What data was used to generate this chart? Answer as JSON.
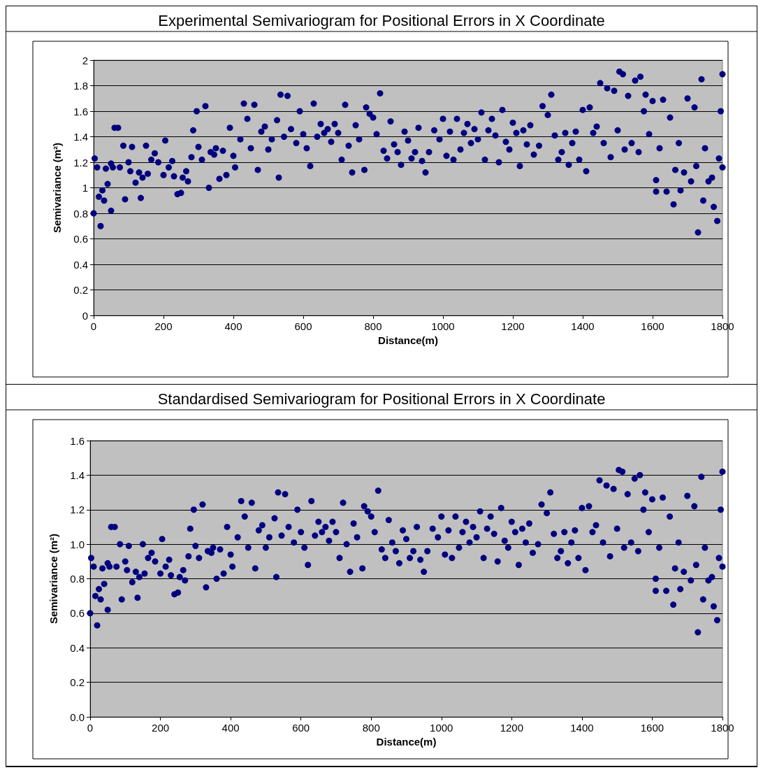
{
  "chart_data": [
    {
      "type": "scatter",
      "title": "Experimental Semivariogram for Positional Errors in X Coordinate",
      "xlabel": "Distance(m)",
      "ylabel": "Semivariance (m²)",
      "xlim": [
        0,
        1800
      ],
      "xticks": [
        0,
        200,
        400,
        600,
        800,
        1000,
        1200,
        1400,
        1600,
        1800
      ],
      "ylim": [
        0,
        2
      ],
      "yticks": [
        0,
        0.2,
        0.4,
        0.6,
        0.8,
        1,
        1.2,
        1.4,
        1.6,
        1.8,
        2
      ],
      "grid": "y",
      "marker": "circle",
      "x": [
        0,
        3,
        10,
        15,
        20,
        25,
        30,
        35,
        40,
        50,
        50,
        55,
        60,
        70,
        75,
        85,
        90,
        100,
        105,
        110,
        120,
        130,
        135,
        140,
        150,
        155,
        165,
        175,
        185,
        200,
        205,
        215,
        225,
        230,
        240,
        250,
        255,
        265,
        270,
        280,
        285,
        295,
        300,
        310,
        320,
        330,
        335,
        345,
        350,
        360,
        370,
        380,
        390,
        400,
        405,
        420,
        430,
        440,
        450,
        460,
        470,
        480,
        490,
        500,
        510,
        525,
        530,
        535,
        545,
        555,
        565,
        580,
        590,
        600,
        610,
        620,
        630,
        640,
        650,
        660,
        670,
        680,
        690,
        700,
        710,
        720,
        730,
        740,
        750,
        760,
        775,
        780,
        790,
        800,
        810,
        820,
        830,
        840,
        850,
        860,
        870,
        880,
        890,
        900,
        910,
        920,
        930,
        940,
        950,
        960,
        975,
        990,
        1000,
        1010,
        1020,
        1030,
        1040,
        1050,
        1060,
        1070,
        1080,
        1090,
        1100,
        1110,
        1120,
        1130,
        1140,
        1150,
        1160,
        1170,
        1180,
        1190,
        1200,
        1210,
        1220,
        1230,
        1240,
        1250,
        1260,
        1275,
        1285,
        1300,
        1310,
        1320,
        1330,
        1340,
        1350,
        1360,
        1370,
        1380,
        1390,
        1400,
        1410,
        1420,
        1430,
        1440,
        1450,
        1460,
        1470,
        1480,
        1490,
        1500,
        1505,
        1515,
        1520,
        1530,
        1540,
        1550,
        1560,
        1565,
        1575,
        1580,
        1590,
        1600,
        1610,
        1610,
        1620,
        1630,
        1640,
        1650,
        1660,
        1665,
        1675,
        1680,
        1690,
        1700,
        1710,
        1720,
        1725,
        1730,
        1740,
        1745,
        1750,
        1760,
        1770,
        1775,
        1785,
        1790,
        1795,
        1800,
        1800
      ],
      "series": [
        {
          "color": "#000080",
          "values": [
            0.8,
            1.23,
            1.16,
            0.93,
            0.7,
            0.98,
            0.9,
            1.15,
            1.03,
            0.82,
            1.19,
            1.16,
            1.47,
            1.47,
            1.16,
            1.33,
            0.91,
            1.2,
            1.13,
            1.32,
            1.04,
            1.12,
            0.92,
            1.08,
            1.33,
            1.11,
            1.22,
            1.27,
            1.2,
            1.1,
            1.37,
            1.16,
            1.21,
            1.09,
            0.95,
            0.96,
            1.08,
            1.13,
            1.05,
            1.24,
            1.45,
            1.6,
            1.32,
            1.22,
            1.64,
            1.0,
            1.28,
            1.26,
            1.31,
            1.07,
            1.29,
            1.1,
            1.47,
            1.25,
            1.16,
            1.38,
            1.66,
            1.54,
            1.31,
            1.65,
            1.14,
            1.44,
            1.48,
            1.3,
            1.38,
            1.53,
            1.08,
            1.73,
            1.4,
            1.72,
            1.46,
            1.35,
            1.6,
            1.42,
            1.31,
            1.17,
            1.66,
            1.4,
            1.5,
            1.43,
            1.46,
            1.36,
            1.5,
            1.43,
            1.22,
            1.65,
            1.33,
            1.12,
            1.49,
            1.38,
            1.14,
            1.63,
            1.58,
            1.55,
            1.42,
            1.74,
            1.29,
            1.23,
            1.52,
            1.34,
            1.28,
            1.18,
            1.44,
            1.37,
            1.23,
            1.28,
            1.47,
            1.21,
            1.12,
            1.28,
            1.45,
            1.38,
            1.54,
            1.25,
            1.44,
            1.22,
            1.54,
            1.3,
            1.43,
            1.5,
            1.35,
            1.46,
            1.38,
            1.59,
            1.22,
            1.45,
            1.54,
            1.41,
            1.2,
            1.61,
            1.36,
            1.3,
            1.51,
            1.43,
            1.17,
            1.45,
            1.34,
            1.49,
            1.26,
            1.33,
            1.64,
            1.57,
            1.73,
            1.41,
            1.22,
            1.28,
            1.43,
            1.18,
            1.35,
            1.44,
            1.22,
            1.61,
            1.13,
            1.63,
            1.43,
            1.48,
            1.82,
            1.35,
            1.78,
            1.24,
            1.76,
            1.45,
            1.91,
            1.89,
            1.3,
            1.72,
            1.35,
            1.84,
            1.28,
            1.87,
            1.6,
            1.73,
            1.42,
            1.68,
            1.06,
            0.97,
            1.31,
            1.69,
            0.97,
            1.55,
            0.87,
            1.14,
            1.35,
            0.98,
            1.12,
            1.7,
            1.05,
            1.63,
            1.17,
            0.65,
            1.85,
            0.9,
            1.31,
            1.05,
            1.08,
            0.85,
            0.74,
            1.23,
            1.6,
            1.89,
            1.16
          ]
        }
      ]
    },
    {
      "type": "scatter",
      "title": "Standardised Semivariogram for Positional Errors in X Coordinate",
      "xlabel": "Distance(m)",
      "ylabel": "Semivariance (m²)",
      "xlim": [
        0,
        1800
      ],
      "xticks": [
        0,
        200,
        400,
        600,
        800,
        1000,
        1200,
        1400,
        1600,
        1800
      ],
      "ylim": [
        0,
        1.6
      ],
      "yticks": [
        {
          "value": 0,
          "label": "0.0"
        },
        0.2,
        0.4,
        0.6,
        0.8,
        {
          "value": 1,
          "label": "1.0"
        },
        1.2,
        1.4,
        1.6
      ],
      "grid": "y",
      "marker": "circle",
      "x": [
        0,
        3,
        10,
        15,
        20,
        25,
        30,
        35,
        40,
        50,
        50,
        55,
        60,
        70,
        75,
        85,
        90,
        100,
        105,
        110,
        120,
        130,
        135,
        140,
        150,
        155,
        165,
        175,
        185,
        200,
        205,
        215,
        225,
        230,
        240,
        250,
        255,
        265,
        270,
        280,
        285,
        295,
        300,
        310,
        320,
        330,
        335,
        345,
        350,
        360,
        370,
        380,
        390,
        400,
        405,
        420,
        430,
        440,
        450,
        460,
        470,
        480,
        490,
        500,
        510,
        525,
        530,
        535,
        545,
        555,
        565,
        580,
        590,
        600,
        610,
        620,
        630,
        640,
        650,
        660,
        670,
        680,
        690,
        700,
        710,
        720,
        730,
        740,
        750,
        760,
        775,
        780,
        790,
        800,
        810,
        820,
        830,
        840,
        850,
        860,
        870,
        880,
        890,
        900,
        910,
        920,
        930,
        940,
        950,
        960,
        975,
        990,
        1000,
        1010,
        1020,
        1030,
        1040,
        1050,
        1060,
        1070,
        1080,
        1090,
        1100,
        1110,
        1120,
        1130,
        1140,
        1150,
        1160,
        1170,
        1180,
        1190,
        1200,
        1210,
        1220,
        1230,
        1240,
        1250,
        1260,
        1275,
        1285,
        1300,
        1310,
        1320,
        1330,
        1340,
        1350,
        1360,
        1370,
        1380,
        1390,
        1400,
        1410,
        1420,
        1430,
        1440,
        1450,
        1460,
        1470,
        1480,
        1490,
        1500,
        1505,
        1515,
        1520,
        1530,
        1540,
        1550,
        1560,
        1565,
        1575,
        1580,
        1590,
        1600,
        1610,
        1610,
        1620,
        1630,
        1640,
        1650,
        1660,
        1665,
        1675,
        1680,
        1690,
        1700,
        1710,
        1720,
        1725,
        1730,
        1740,
        1745,
        1750,
        1760,
        1770,
        1775,
        1785,
        1790,
        1795,
        1800,
        1800
      ],
      "series": [
        {
          "color": "#000080",
          "values": [
            0.6,
            0.92,
            0.87,
            0.7,
            0.53,
            0.74,
            0.68,
            0.86,
            0.77,
            0.62,
            0.89,
            0.87,
            1.1,
            1.1,
            0.87,
            1.0,
            0.68,
            0.9,
            0.85,
            0.99,
            0.78,
            0.84,
            0.69,
            0.81,
            1.0,
            0.83,
            0.92,
            0.95,
            0.9,
            0.83,
            1.03,
            0.87,
            0.91,
            0.82,
            0.71,
            0.72,
            0.81,
            0.85,
            0.79,
            0.93,
            1.09,
            1.2,
            0.99,
            0.92,
            1.23,
            0.75,
            0.96,
            0.95,
            0.98,
            0.8,
            0.97,
            0.83,
            1.1,
            0.94,
            0.87,
            1.04,
            1.25,
            1.16,
            0.98,
            1.24,
            0.86,
            1.08,
            1.11,
            0.98,
            1.04,
            1.15,
            0.81,
            1.3,
            1.05,
            1.29,
            1.1,
            1.01,
            1.2,
            1.07,
            0.98,
            0.88,
            1.25,
            1.05,
            1.13,
            1.07,
            1.1,
            1.02,
            1.13,
            1.07,
            0.92,
            1.24,
            1.0,
            0.84,
            1.12,
            1.04,
            0.86,
            1.22,
            1.19,
            1.16,
            1.07,
            1.31,
            0.97,
            0.92,
            1.14,
            1.01,
            0.96,
            0.89,
            1.08,
            1.03,
            0.92,
            0.96,
            1.1,
            0.91,
            0.84,
            0.96,
            1.09,
            1.04,
            1.16,
            0.94,
            1.08,
            0.92,
            1.16,
            0.98,
            1.07,
            1.13,
            1.01,
            1.1,
            1.04,
            1.19,
            0.92,
            1.09,
            1.16,
            1.06,
            0.9,
            1.21,
            1.02,
            0.98,
            1.13,
            1.07,
            0.88,
            1.09,
            1.01,
            1.12,
            0.95,
            1.0,
            1.23,
            1.18,
            1.3,
            1.06,
            0.92,
            0.96,
            1.07,
            0.89,
            1.01,
            1.08,
            0.92,
            1.21,
            0.85,
            1.22,
            1.07,
            1.11,
            1.37,
            1.01,
            1.34,
            0.93,
            1.32,
            1.09,
            1.43,
            1.42,
            0.98,
            1.29,
            1.01,
            1.38,
            0.96,
            1.4,
            1.2,
            1.3,
            1.07,
            1.26,
            0.8,
            0.73,
            0.98,
            1.27,
            0.73,
            1.16,
            0.65,
            0.86,
            1.01,
            0.74,
            0.84,
            1.28,
            0.79,
            1.22,
            0.88,
            0.49,
            1.39,
            0.68,
            0.98,
            0.79,
            0.81,
            0.64,
            0.56,
            0.92,
            1.2,
            1.42,
            0.87
          ]
        }
      ]
    }
  ]
}
